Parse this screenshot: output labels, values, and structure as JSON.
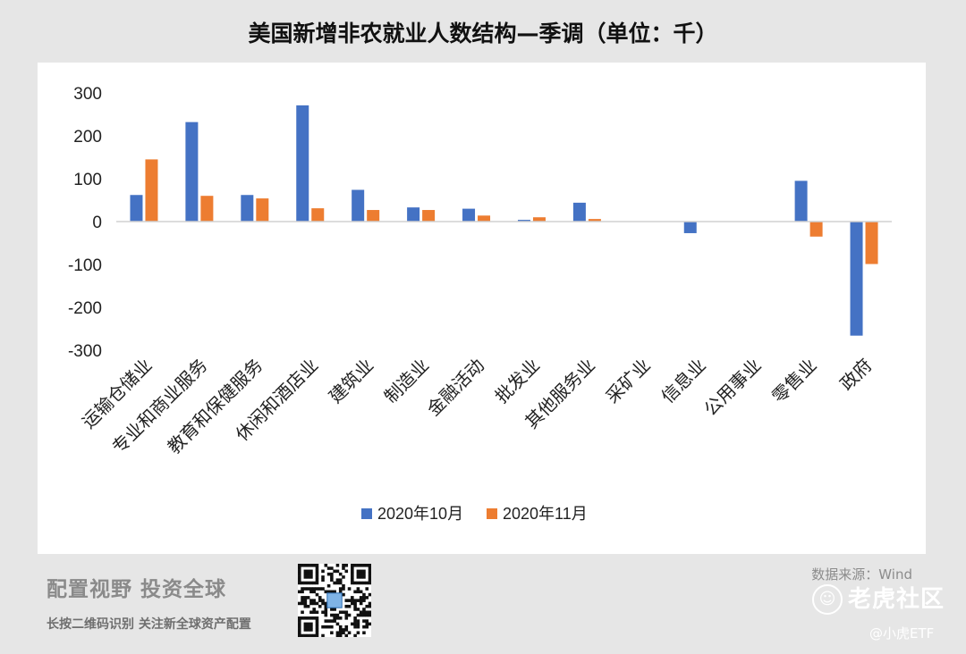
{
  "chart_data": {
    "type": "bar",
    "title": "美国新增非农就业人数结构—季调（单位：千）",
    "categories": [
      "运输仓储业",
      "专业和商业服务",
      "教育和保健服务",
      "休闲和酒店业",
      "建筑业",
      "制造业",
      "金融活动",
      "批发业",
      "其他服务业",
      "采矿业",
      "信息业",
      "公用事业",
      "零售业",
      "政府"
    ],
    "series": [
      {
        "name": "2020年10月",
        "color": "#4472c4",
        "values": [
          62,
          232,
          62,
          271,
          74,
          33,
          30,
          4,
          44,
          0,
          -27,
          0,
          95,
          -266
        ]
      },
      {
        "name": "2020年11月",
        "color": "#ed7d31",
        "values": [
          145,
          60,
          54,
          31,
          27,
          27,
          14,
          10,
          6,
          0,
          0,
          0,
          -35,
          -99
        ]
      }
    ],
    "ylim": [
      -300,
      300
    ],
    "yticks": [
      300,
      200,
      100,
      0,
      -100,
      -200,
      -300
    ],
    "xlabel": "",
    "ylabel": "",
    "legend": "bottom"
  },
  "footer": {
    "slogan": "配置视野   投资全球",
    "qr_tip": "长按二维码识别   关注新全球资产配置",
    "source": "数据来源：Wind",
    "watermark_text": "老虎社区",
    "watermark_logo": "☺",
    "watermark_user": "@小虎ETF"
  }
}
